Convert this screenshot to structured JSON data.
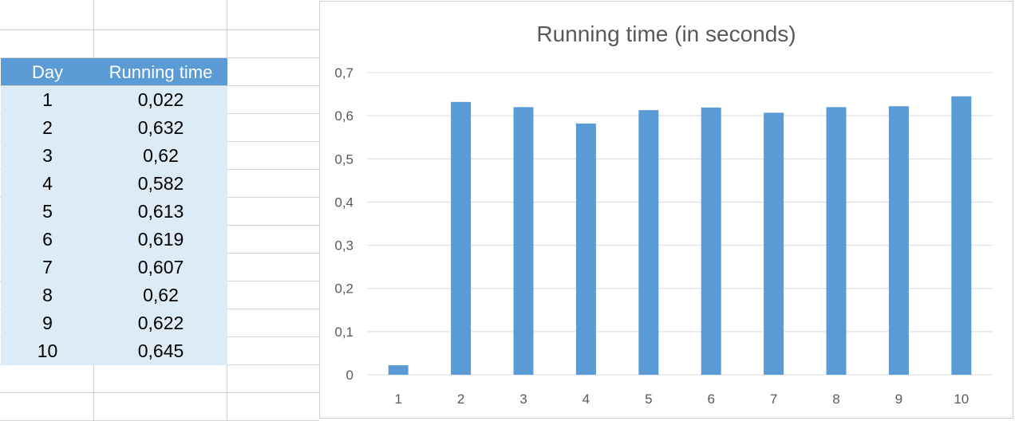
{
  "table": {
    "headers": [
      "Day",
      "Running time"
    ],
    "rows": [
      [
        "1",
        "0,022"
      ],
      [
        "2",
        "0,632"
      ],
      [
        "3",
        "0,62"
      ],
      [
        "4",
        "0,582"
      ],
      [
        "5",
        "0,613"
      ],
      [
        "6",
        "0,619"
      ],
      [
        "7",
        "0,607"
      ],
      [
        "8",
        "0,62"
      ],
      [
        "9",
        "0,622"
      ],
      [
        "10",
        "0,645"
      ]
    ]
  },
  "chart_data": {
    "type": "bar",
    "title": "Running time (in seconds)",
    "categories": [
      "1",
      "2",
      "3",
      "4",
      "5",
      "6",
      "7",
      "8",
      "9",
      "10"
    ],
    "values": [
      0.022,
      0.632,
      0.62,
      0.582,
      0.613,
      0.619,
      0.607,
      0.62,
      0.622,
      0.645
    ],
    "ylim": [
      0,
      0.7
    ],
    "yticks": [
      "0",
      "0,1",
      "0,2",
      "0,3",
      "0,4",
      "0,5",
      "0,6",
      "0,7"
    ],
    "xlabel": "",
    "ylabel": "",
    "grid": true,
    "legend": "none",
    "bar_color": "#5b9bd5"
  },
  "colors": {
    "header_fill": "#5b9bd5",
    "row_fill": "#ddebf7",
    "gridline": "#d9d9d9"
  }
}
